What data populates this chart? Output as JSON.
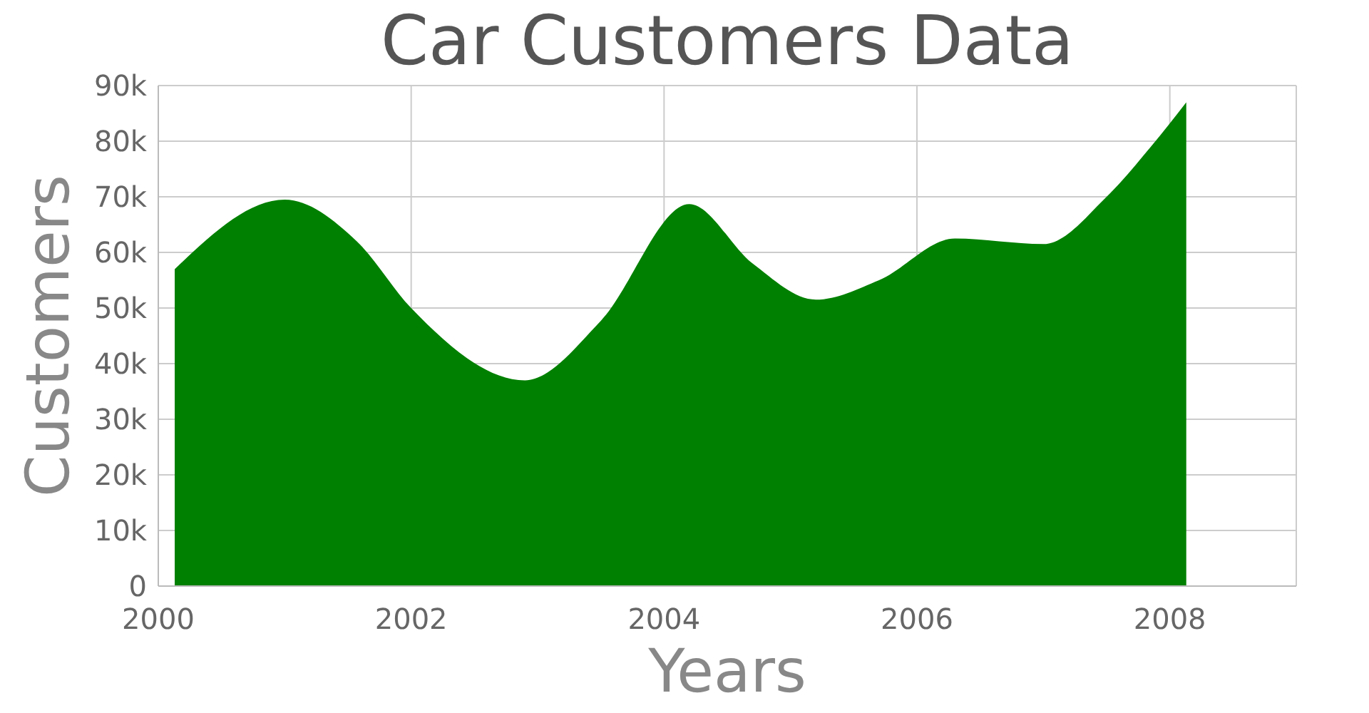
{
  "chart_data": {
    "type": "area",
    "title": "Car Customers Data",
    "xlabel": "Years",
    "ylabel": "Customers",
    "x": [
      2000.13,
      2001.0,
      2001.57,
      2002.0,
      2002.9,
      2003.5,
      2004.2,
      2004.7,
      2005.2,
      2005.7,
      2006.3,
      2007.0,
      2007.5,
      2007.85,
      2008.13
    ],
    "series": [
      {
        "color": "#008000",
        "values": [
          57000,
          69500,
          62000,
          50000,
          37000,
          47700,
          68700,
          58000,
          51500,
          55000,
          62500,
          61500,
          70000,
          79000,
          87000
        ]
      }
    ],
    "xlim": [
      2000,
      2009
    ],
    "xticks": [
      2000,
      2002,
      2004,
      2006,
      2008
    ],
    "ylim": [
      0,
      90000
    ],
    "yticks": [
      {
        "value": 0,
        "label": "0"
      },
      {
        "value": 10000,
        "label": "10k"
      },
      {
        "value": 20000,
        "label": "20k"
      },
      {
        "value": 30000,
        "label": "30k"
      },
      {
        "value": 40000,
        "label": "40k"
      },
      {
        "value": 50000,
        "label": "50k"
      },
      {
        "value": 60000,
        "label": "60k"
      },
      {
        "value": 70000,
        "label": "70k"
      },
      {
        "value": 80000,
        "label": "80k"
      },
      {
        "value": 90000,
        "label": "90k"
      }
    ],
    "grid": true
  }
}
